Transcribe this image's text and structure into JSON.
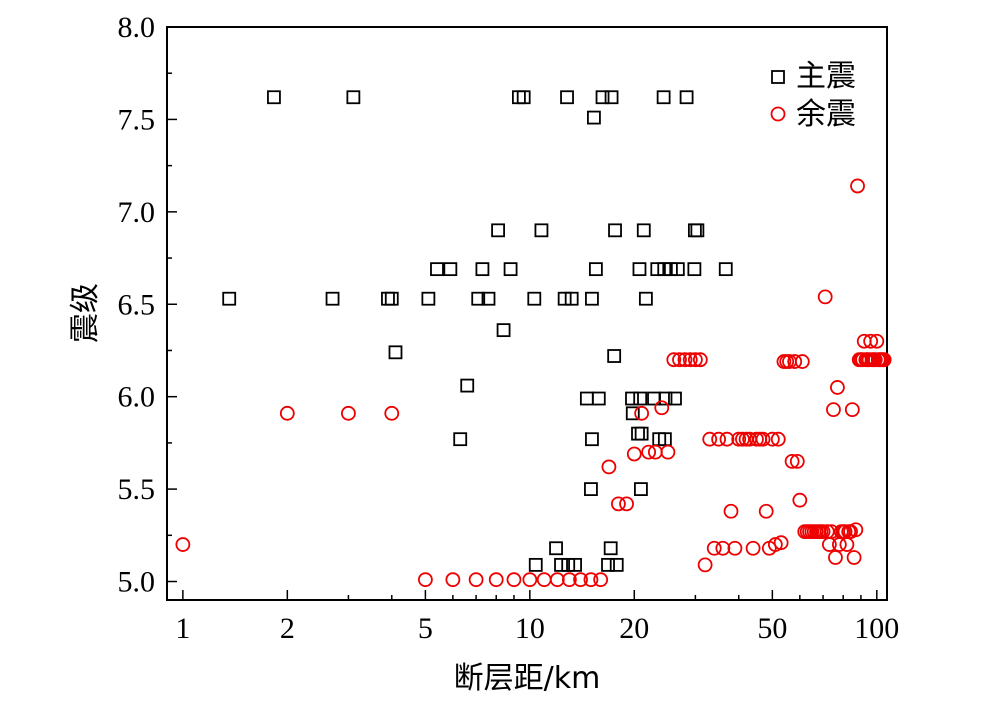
{
  "chart_data": {
    "type": "scatter",
    "xlabel": "断层距/km",
    "ylabel": "震级",
    "xscale": "log",
    "xlim": [
      0.9,
      107
    ],
    "ylim": [
      4.9,
      8.0
    ],
    "x_ticks": [
      {
        "value": 1,
        "label": "1"
      },
      {
        "value": 2,
        "label": "2"
      },
      {
        "value": 5,
        "label": "5"
      },
      {
        "value": 10,
        "label": "10"
      },
      {
        "value": 20,
        "label": "20"
      },
      {
        "value": 50,
        "label": "50"
      },
      {
        "value": 100,
        "label": "100"
      }
    ],
    "y_ticks": [
      {
        "value": 5.0,
        "label": "5.0"
      },
      {
        "value": 5.5,
        "label": "5.5"
      },
      {
        "value": 6.0,
        "label": "6.0"
      },
      {
        "value": 6.5,
        "label": "6.5"
      },
      {
        "value": 7.0,
        "label": "7.0"
      },
      {
        "value": 7.5,
        "label": "7.5"
      },
      {
        "value": 8.0,
        "label": "8.0"
      }
    ],
    "legend_position": "top-right",
    "series": [
      {
        "name": "主震",
        "marker": "square",
        "color": "#000000",
        "points": [
          [
            1.36,
            6.53
          ],
          [
            1.83,
            7.62
          ],
          [
            2.7,
            6.53
          ],
          [
            3.1,
            7.62
          ],
          [
            3.9,
            6.53
          ],
          [
            4.0,
            6.53
          ],
          [
            4.1,
            6.24
          ],
          [
            5.1,
            6.53
          ],
          [
            5.4,
            6.69
          ],
          [
            5.9,
            6.69
          ],
          [
            6.3,
            5.77
          ],
          [
            6.6,
            6.06
          ],
          [
            7.1,
            6.53
          ],
          [
            7.3,
            6.69
          ],
          [
            7.6,
            6.53
          ],
          [
            8.1,
            6.9
          ],
          [
            8.4,
            6.36
          ],
          [
            8.8,
            6.69
          ],
          [
            9.3,
            7.62
          ],
          [
            9.6,
            7.62
          ],
          [
            10.3,
            6.53
          ],
          [
            10.4,
            5.09
          ],
          [
            10.8,
            6.9
          ],
          [
            11.9,
            5.18
          ],
          [
            12.3,
            5.09
          ],
          [
            12.6,
            6.53
          ],
          [
            12.8,
            7.62
          ],
          [
            12.9,
            5.09
          ],
          [
            13.2,
            6.53
          ],
          [
            13.5,
            5.09
          ],
          [
            14.6,
            5.99
          ],
          [
            15.0,
            5.5
          ],
          [
            15.1,
            5.77
          ],
          [
            15.1,
            6.53
          ],
          [
            15.3,
            7.51
          ],
          [
            15.5,
            6.69
          ],
          [
            15.8,
            5.99
          ],
          [
            16.2,
            7.62
          ],
          [
            16.8,
            5.09
          ],
          [
            17.1,
            5.18
          ],
          [
            17.2,
            7.62
          ],
          [
            17.5,
            6.22
          ],
          [
            17.6,
            6.9
          ],
          [
            17.8,
            5.09
          ],
          [
            19.7,
            5.99
          ],
          [
            19.8,
            5.91
          ],
          [
            20.5,
            5.8
          ],
          [
            20.7,
            6.69
          ],
          [
            20.8,
            5.99
          ],
          [
            20.9,
            5.5
          ],
          [
            21.0,
            5.8
          ],
          [
            21.3,
            6.9
          ],
          [
            21.6,
            6.53
          ],
          [
            22.8,
            5.99
          ],
          [
            23.3,
            6.69
          ],
          [
            23.6,
            5.77
          ],
          [
            24.3,
            7.62
          ],
          [
            24.4,
            6.69
          ],
          [
            24.5,
            5.77
          ],
          [
            24.6,
            5.99
          ],
          [
            25.5,
            6.69
          ],
          [
            26.2,
            5.99
          ],
          [
            26.7,
            6.69
          ],
          [
            28.3,
            7.62
          ],
          [
            29.8,
            6.69
          ],
          [
            29.9,
            6.9
          ],
          [
            30.4,
            6.9
          ],
          [
            36.7,
            6.69
          ]
        ]
      },
      {
        "name": "余震",
        "marker": "circle",
        "color": "#ee0000",
        "points": [
          [
            1.0,
            5.2
          ],
          [
            2.0,
            5.91
          ],
          [
            3.0,
            5.91
          ],
          [
            4.0,
            5.91
          ],
          [
            5.0,
            5.01
          ],
          [
            6.0,
            5.01
          ],
          [
            7.0,
            5.01
          ],
          [
            8.0,
            5.01
          ],
          [
            9.0,
            5.01
          ],
          [
            10.0,
            5.01
          ],
          [
            11.0,
            5.01
          ],
          [
            12.0,
            5.01
          ],
          [
            13.0,
            5.01
          ],
          [
            14.0,
            5.01
          ],
          [
            15.0,
            5.01
          ],
          [
            16.0,
            5.01
          ],
          [
            16.9,
            5.62
          ],
          [
            18.0,
            5.42
          ],
          [
            19.0,
            5.42
          ],
          [
            20.0,
            5.69
          ],
          [
            21.0,
            5.91
          ],
          [
            22.0,
            5.7
          ],
          [
            23.0,
            5.7
          ],
          [
            24.0,
            5.94
          ],
          [
            25.0,
            5.7
          ],
          [
            26.0,
            6.2
          ],
          [
            27.0,
            6.2
          ],
          [
            28.0,
            6.2
          ],
          [
            29.0,
            6.2
          ],
          [
            30.0,
            6.2
          ],
          [
            31.0,
            6.2
          ],
          [
            32.0,
            5.09
          ],
          [
            33.0,
            5.77
          ],
          [
            34.0,
            5.18
          ],
          [
            35.0,
            5.77
          ],
          [
            36.0,
            5.18
          ],
          [
            37.0,
            5.77
          ],
          [
            38.0,
            5.38
          ],
          [
            39.0,
            5.18
          ],
          [
            40.0,
            5.77
          ],
          [
            41.0,
            5.77
          ],
          [
            42.0,
            5.77
          ],
          [
            43.0,
            5.77
          ],
          [
            44.0,
            5.18
          ],
          [
            45.0,
            5.77
          ],
          [
            46.0,
            5.77
          ],
          [
            47.0,
            5.77
          ],
          [
            48.0,
            5.38
          ],
          [
            49.0,
            5.18
          ],
          [
            50.0,
            5.77
          ],
          [
            51.0,
            5.2
          ],
          [
            52.0,
            5.77
          ],
          [
            53.0,
            5.21
          ],
          [
            54.0,
            6.19
          ],
          [
            55.0,
            6.19
          ],
          [
            56.0,
            6.19
          ],
          [
            57.0,
            5.65
          ],
          [
            58.0,
            6.19
          ],
          [
            59.0,
            5.65
          ],
          [
            60.0,
            5.44
          ],
          [
            61.0,
            6.19
          ],
          [
            62.0,
            5.27
          ],
          [
            63.0,
            5.27
          ],
          [
            64.0,
            5.27
          ],
          [
            65.0,
            5.27
          ],
          [
            66.0,
            5.27
          ],
          [
            67.0,
            5.27
          ],
          [
            68.0,
            5.27
          ],
          [
            69.0,
            5.27
          ],
          [
            70.0,
            5.27
          ],
          [
            71.0,
            6.54
          ],
          [
            72.0,
            5.27
          ],
          [
            73.0,
            5.2
          ],
          [
            74.0,
            5.27
          ],
          [
            75.0,
            5.93
          ],
          [
            76.0,
            5.13
          ],
          [
            77.0,
            6.05
          ],
          [
            78.0,
            5.2
          ],
          [
            79.0,
            5.27
          ],
          [
            80.0,
            5.27
          ],
          [
            81.0,
            5.27
          ],
          [
            82.0,
            5.2
          ],
          [
            83.0,
            5.27
          ],
          [
            84.0,
            5.27
          ],
          [
            85.0,
            5.93
          ],
          [
            86.0,
            5.13
          ],
          [
            87.0,
            5.28
          ],
          [
            88.0,
            7.14
          ],
          [
            89.0,
            6.2
          ],
          [
            90.0,
            6.2
          ],
          [
            91.0,
            6.2
          ],
          [
            92.0,
            6.3
          ],
          [
            93.0,
            6.2
          ],
          [
            94.0,
            6.2
          ],
          [
            95.0,
            6.2
          ],
          [
            96.0,
            6.3
          ],
          [
            97.0,
            6.2
          ],
          [
            98.0,
            6.2
          ],
          [
            99.0,
            6.2
          ],
          [
            100.0,
            6.3
          ],
          [
            101.0,
            6.2
          ],
          [
            102.0,
            6.2
          ],
          [
            103.0,
            6.2
          ],
          [
            104.0,
            6.2
          ],
          [
            105.0,
            6.2
          ]
        ]
      }
    ]
  }
}
